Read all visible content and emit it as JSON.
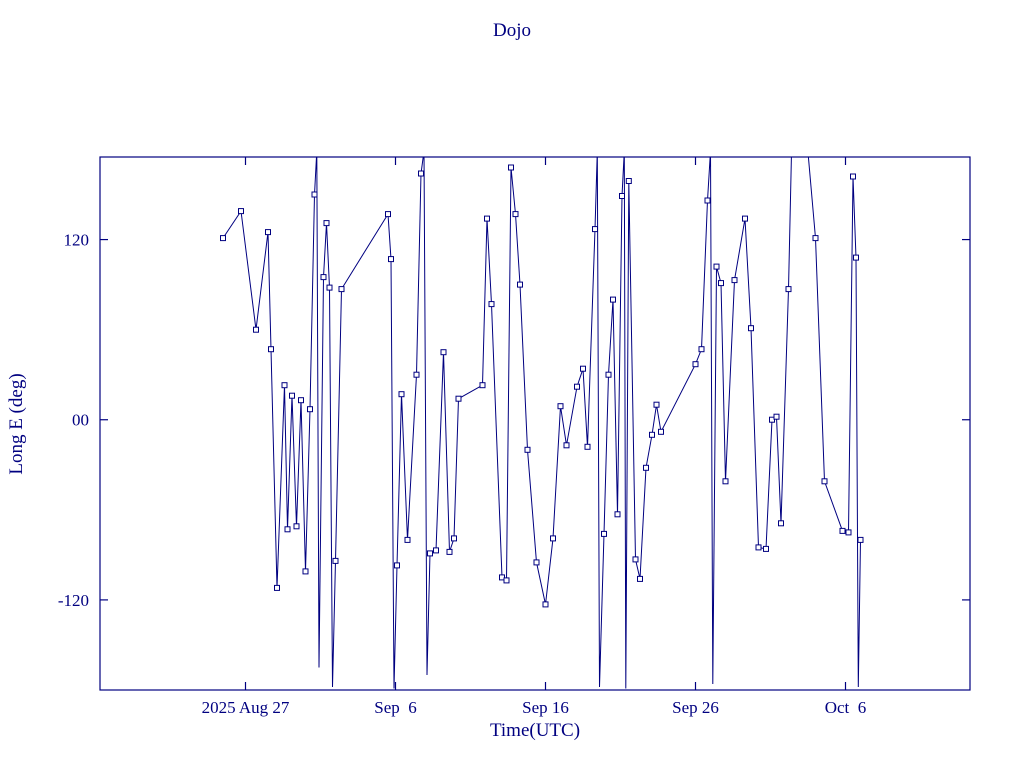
{
  "chart_data": {
    "type": "line",
    "title": "Dojo",
    "xlabel": "Time(UTC)",
    "ylabel": "Long E (deg)",
    "line_color": "#000080",
    "background_color": "#ffffff",
    "marker": "open-square",
    "legend": "none",
    "grid": false,
    "x_axis": {
      "unit": "days since 2025-08-17 (UTC)",
      "min": 0.3,
      "max": 58.3,
      "ticks": [
        {
          "t": 10,
          "label": "2025 Aug 27"
        },
        {
          "t": 20,
          "label": "Sep  6"
        },
        {
          "t": 30,
          "label": "Sep 16"
        },
        {
          "t": 40,
          "label": "Sep 26"
        },
        {
          "t": 50,
          "label": "Oct  6"
        }
      ]
    },
    "y_axis": {
      "unit": "deg",
      "min": -180,
      "max": 175,
      "ticks": [
        {
          "v": 120,
          "label": "120"
        },
        {
          "v": 0,
          "label": "00"
        },
        {
          "v": -120,
          "label": "-120"
        }
      ]
    },
    "points_format": [
      "t_days",
      "longitude_deg",
      "has_marker"
    ],
    "points": [
      [
        8.5,
        121,
        1
      ],
      [
        9.7,
        139,
        1
      ],
      [
        10.7,
        60,
        1
      ],
      [
        11.5,
        125,
        1
      ],
      [
        11.7,
        47,
        1
      ],
      [
        12.1,
        -112,
        1
      ],
      [
        12.6,
        23,
        1
      ],
      [
        12.8,
        -73,
        1
      ],
      [
        13.1,
        16,
        1
      ],
      [
        13.4,
        -71,
        1
      ],
      [
        13.7,
        13,
        1
      ],
      [
        14.0,
        -101,
        1
      ],
      [
        14.3,
        7,
        1
      ],
      [
        14.6,
        150,
        1
      ],
      [
        14.75,
        179,
        0
      ],
      [
        14.9,
        -165,
        0
      ],
      [
        15.2,
        95,
        1
      ],
      [
        15.4,
        131,
        1
      ],
      [
        15.6,
        88,
        1
      ],
      [
        15.8,
        -178,
        0
      ],
      [
        16.0,
        -94,
        1
      ],
      [
        16.4,
        87,
        1
      ],
      [
        19.5,
        137,
        1
      ],
      [
        19.7,
        107,
        1
      ],
      [
        19.9,
        -179,
        0
      ],
      [
        20.1,
        -97,
        1
      ],
      [
        20.4,
        17,
        1
      ],
      [
        20.8,
        -80,
        1
      ],
      [
        21.4,
        30,
        1
      ],
      [
        21.7,
        164,
        1
      ],
      [
        21.9,
        179,
        0
      ],
      [
        22.1,
        -170,
        0
      ],
      [
        22.3,
        -89,
        1
      ],
      [
        22.7,
        -87,
        1
      ],
      [
        23.2,
        45,
        1
      ],
      [
        23.6,
        -88,
        1
      ],
      [
        23.9,
        -79,
        1
      ],
      [
        24.2,
        14,
        1
      ],
      [
        25.8,
        23,
        1
      ],
      [
        26.1,
        134,
        1
      ],
      [
        26.4,
        77,
        1
      ],
      [
        27.1,
        -105,
        1
      ],
      [
        27.4,
        -107,
        1
      ],
      [
        27.7,
        168,
        1
      ],
      [
        28.0,
        137,
        1
      ],
      [
        28.3,
        90,
        1
      ],
      [
        28.8,
        -20,
        1
      ],
      [
        29.4,
        -95,
        1
      ],
      [
        30.0,
        -123,
        1
      ],
      [
        30.5,
        -79,
        1
      ],
      [
        31.0,
        9,
        1
      ],
      [
        31.4,
        -17,
        1
      ],
      [
        32.1,
        22,
        1
      ],
      [
        32.5,
        34,
        1
      ],
      [
        32.8,
        -18,
        1
      ],
      [
        33.3,
        127,
        1
      ],
      [
        33.45,
        179,
        0
      ],
      [
        33.6,
        -178,
        0
      ],
      [
        33.9,
        -76,
        1
      ],
      [
        34.2,
        30,
        1
      ],
      [
        34.5,
        80,
        1
      ],
      [
        34.8,
        -63,
        1
      ],
      [
        35.1,
        149,
        1
      ],
      [
        35.25,
        179,
        0
      ],
      [
        35.35,
        -179,
        0
      ],
      [
        35.55,
        159,
        1
      ],
      [
        36.0,
        -93,
        1
      ],
      [
        36.3,
        -106,
        1
      ],
      [
        36.7,
        -32,
        1
      ],
      [
        37.1,
        -10,
        1
      ],
      [
        37.4,
        10,
        1
      ],
      [
        37.7,
        -8,
        1
      ],
      [
        40.0,
        37,
        1
      ],
      [
        40.4,
        47,
        1
      ],
      [
        40.8,
        146,
        1
      ],
      [
        41.0,
        179,
        0
      ],
      [
        41.15,
        -176,
        0
      ],
      [
        41.4,
        102,
        1
      ],
      [
        41.7,
        91,
        1
      ],
      [
        42.0,
        -41,
        1
      ],
      [
        42.6,
        93,
        1
      ],
      [
        43.3,
        134,
        1
      ],
      [
        43.7,
        61,
        1
      ],
      [
        44.2,
        -85,
        1
      ],
      [
        44.7,
        -86,
        1
      ],
      [
        45.1,
        0,
        1
      ],
      [
        45.4,
        2,
        1
      ],
      [
        45.7,
        -69,
        1
      ],
      [
        46.2,
        87,
        1
      ],
      [
        46.4,
        178,
        0
      ],
      [
        47.5,
        178,
        0
      ],
      [
        48.0,
        121,
        1
      ],
      [
        48.6,
        -41,
        1
      ],
      [
        49.8,
        -74,
        1
      ],
      [
        50.2,
        -75,
        1
      ],
      [
        50.5,
        162,
        1
      ],
      [
        50.7,
        108,
        1
      ],
      [
        50.85,
        -178,
        0
      ],
      [
        51.0,
        -80,
        1
      ]
    ]
  }
}
